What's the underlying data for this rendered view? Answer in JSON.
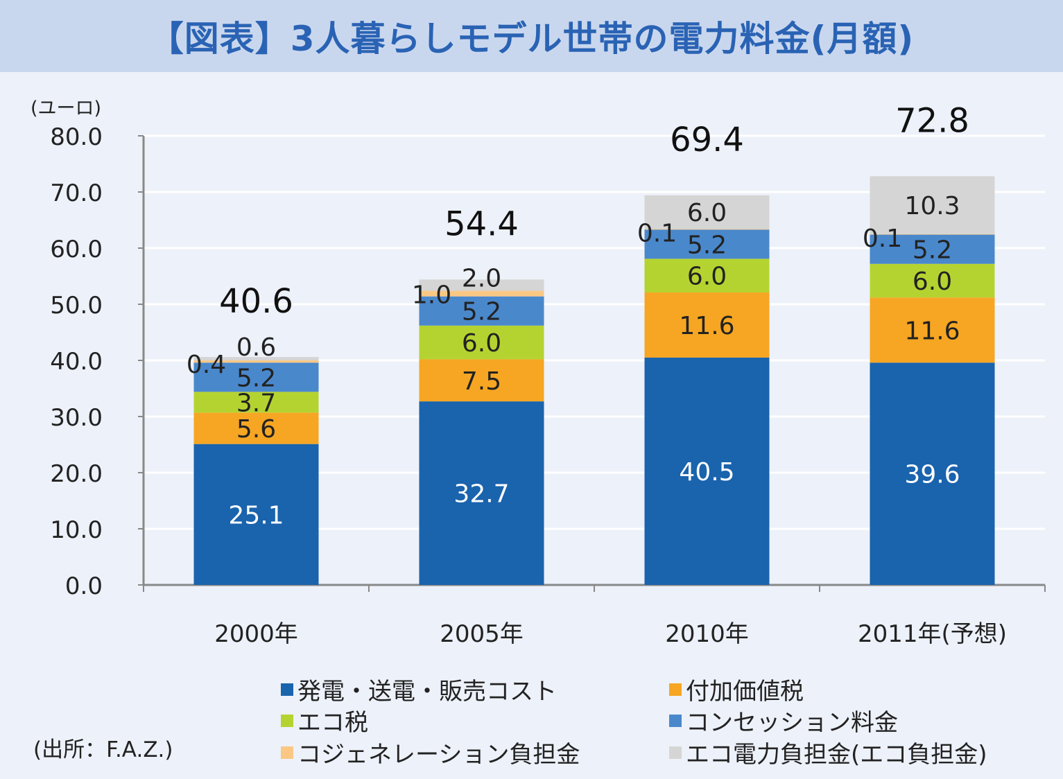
{
  "title": "【図表】3人暮らしモデル世帯の電力料金(月額)",
  "source": "(出所：F.A.Z.)",
  "chart_data": {
    "type": "bar",
    "stacked": true,
    "ylabel": "(ユーロ)",
    "ylim": [
      0,
      80
    ],
    "yticks": [
      "0.0",
      "10.0",
      "20.0",
      "30.0",
      "40.0",
      "50.0",
      "60.0",
      "70.0",
      "80.0"
    ],
    "grid": true,
    "categories": [
      "2000年",
      "2005年",
      "2010年",
      "2011年(予想)"
    ],
    "totals": [
      "40.6",
      "54.4",
      "69.4",
      "72.8"
    ],
    "series": [
      {
        "name": "発電・送電・販売コスト",
        "color": "#1a63ad",
        "values": [
          25.1,
          32.7,
          40.5,
          39.6
        ],
        "labels": [
          "25.1",
          "32.7",
          "40.5",
          "39.6"
        ]
      },
      {
        "name": "付加価値税",
        "color": "#f6a623",
        "values": [
          5.6,
          7.5,
          11.6,
          11.6
        ],
        "labels": [
          "5.6",
          "7.5",
          "11.6",
          "11.6"
        ]
      },
      {
        "name": "エコ税",
        "color": "#b5d330",
        "values": [
          3.7,
          6.0,
          6.0,
          6.0
        ],
        "labels": [
          "3.7",
          "6.0",
          "6.0",
          "6.0"
        ]
      },
      {
        "name": "コンセッション料金",
        "color": "#4a88cc",
        "values": [
          5.2,
          5.2,
          5.2,
          5.2
        ],
        "labels": [
          "5.2",
          "5.2",
          "5.2",
          "5.2"
        ]
      },
      {
        "name": "コジェネレーション負担金",
        "color": "#fac884",
        "values": [
          0.4,
          1.0,
          0.1,
          0.1
        ],
        "labels": [
          "0.4",
          "1.0",
          "0.1",
          "0.1"
        ]
      },
      {
        "name": "エコ電力負担金(エコ負担金)",
        "color": "#d5d5d5",
        "values": [
          0.6,
          2.0,
          6.0,
          10.3
        ],
        "labels": [
          "0.6",
          "2.0",
          "6.0",
          "10.3"
        ]
      }
    ],
    "legend_position": "bottom"
  }
}
